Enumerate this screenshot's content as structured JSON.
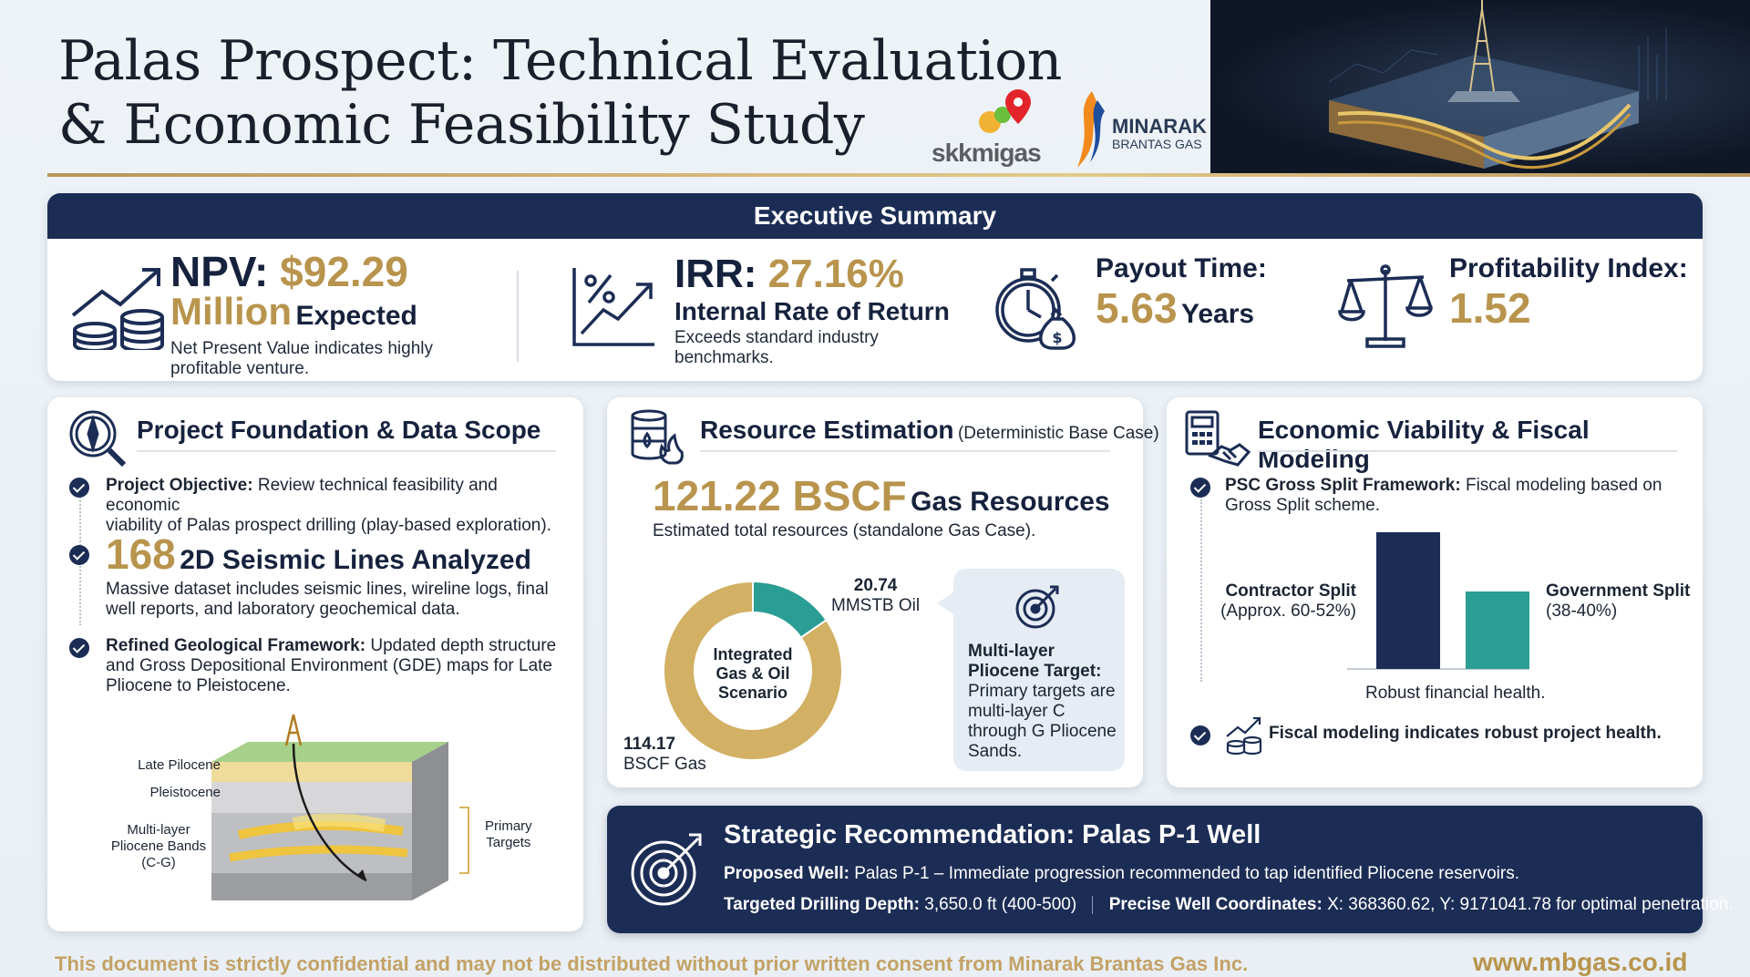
{
  "header": {
    "title_line1": "Palas Prospect: Technical Evaluation",
    "title_line2": "& Economic Feasibility Study",
    "logo_skk": "skkmigas",
    "logo_mbg_1": "MINARAK",
    "logo_mbg_2": "BRANTAS GAS"
  },
  "exec": {
    "title": "Executive Summary",
    "npv_label": "NPV:",
    "npv_value": "$92.29",
    "npv_unit": "Million",
    "npv_expected": "Expected",
    "npv_desc1": "Net Present Value indicates highly",
    "npv_desc2": "profitable venture.",
    "irr_label": "IRR:",
    "irr_value": "27.16%",
    "irr_name": "Internal Rate of Return",
    "irr_desc1": "Exceeds standard industry",
    "irr_desc2": "benchmarks.",
    "payout_label": "Payout Time:",
    "payout_value": "5.63",
    "payout_unit": "Years",
    "pi_label": "Profitability Index:",
    "pi_value": "1.52"
  },
  "foundation": {
    "title": "Project Foundation & Data Scope",
    "obj_b": "Project Objective:",
    "obj_1": "Review technical feasibility and economic",
    "obj_2": "viability of Palas prospect drilling (play-based exploration).",
    "seis_num": "168",
    "seis_label": "2D Seismic Lines Analyzed",
    "seis_1": "Massive dataset includes seismic lines, wireline logs, final",
    "seis_2": "well reports, and laboratory geochemical data.",
    "geo_b": "Refined Geological Framework:",
    "geo_1": "Updated depth structure",
    "geo_2": "and Gross Depositional Environment (GDE) maps for Late",
    "geo_3": "Pliocene to Pleistocene.",
    "lbl_late": "Late Pilocene",
    "lbl_pleist": "Pleistocene",
    "lbl_ml1": "Multi-layer",
    "lbl_ml2": "Pliocene Bands",
    "lbl_ml3": "(C-G)",
    "lbl_pt1": "Primary",
    "lbl_pt2": "Targets"
  },
  "resource": {
    "title": "Resource Estimation",
    "title_sub": "(Deterministic Base Case)",
    "value": "121.22 BSCF",
    "value_unit": "Gas Resources",
    "desc": "Estimated total resources (standalone Gas Case).",
    "center1": "Integrated",
    "center2": "Gas & Oil",
    "center3": "Scenario",
    "oil_val": "20.74",
    "oil_unit": "MMSTB Oil",
    "gas_val": "114.17",
    "gas_unit": "BSCF Gas",
    "target_1": "Multi-layer",
    "target_2": "Pliocene Target:",
    "target_3": "Primary targets are",
    "target_4": "multi-layer C",
    "target_5": "through G Pliocene",
    "target_6": "Sands."
  },
  "chart_data": {
    "type": "pie",
    "title": "Integrated Gas & Oil Scenario",
    "categories": [
      "BSCF Gas",
      "MMSTB Oil"
    ],
    "values": [
      114.17,
      20.74
    ]
  },
  "econ": {
    "title": "Economic Viability & Fiscal Modeling",
    "psc_b": "PSC Gross Split Framework:",
    "psc_1": "Fiscal modeling based on",
    "psc_2": "Gross Split scheme.",
    "contractor_1": "Contractor Split",
    "contractor_2": "(Approx. 60-52%)",
    "gov_1": "Government Split",
    "gov_2": "(38-40%)",
    "bar_caption": "Robust financial health.",
    "fiscal": "Fiscal modeling indicates robust project health.",
    "contractor_share": 60,
    "gov_share": 40
  },
  "rec": {
    "title": "Strategic Recommendation: Palas P-1 Well",
    "well_b": "Proposed Well:",
    "well_t": "Palas P-1 – Immediate progression recommended to tap identified Pliocene reservoirs.",
    "depth_b": "Targeted Drilling Depth:",
    "depth_t": "3,650.0 ft (400-500)",
    "coord_b": "Precise Well Coordinates:",
    "coord_t": "X: 368360.62, Y: 9171041.78 for optimal penetration."
  },
  "footer": {
    "conf": "This document is strictly confidential and may not be distributed without prior written consent from Minarak Brantas Gas Inc.",
    "url": "www.mbgas.co.id"
  },
  "colors": {
    "navy": "#1c2d55",
    "gold": "#b8944d",
    "teal": "#2a9d94"
  }
}
